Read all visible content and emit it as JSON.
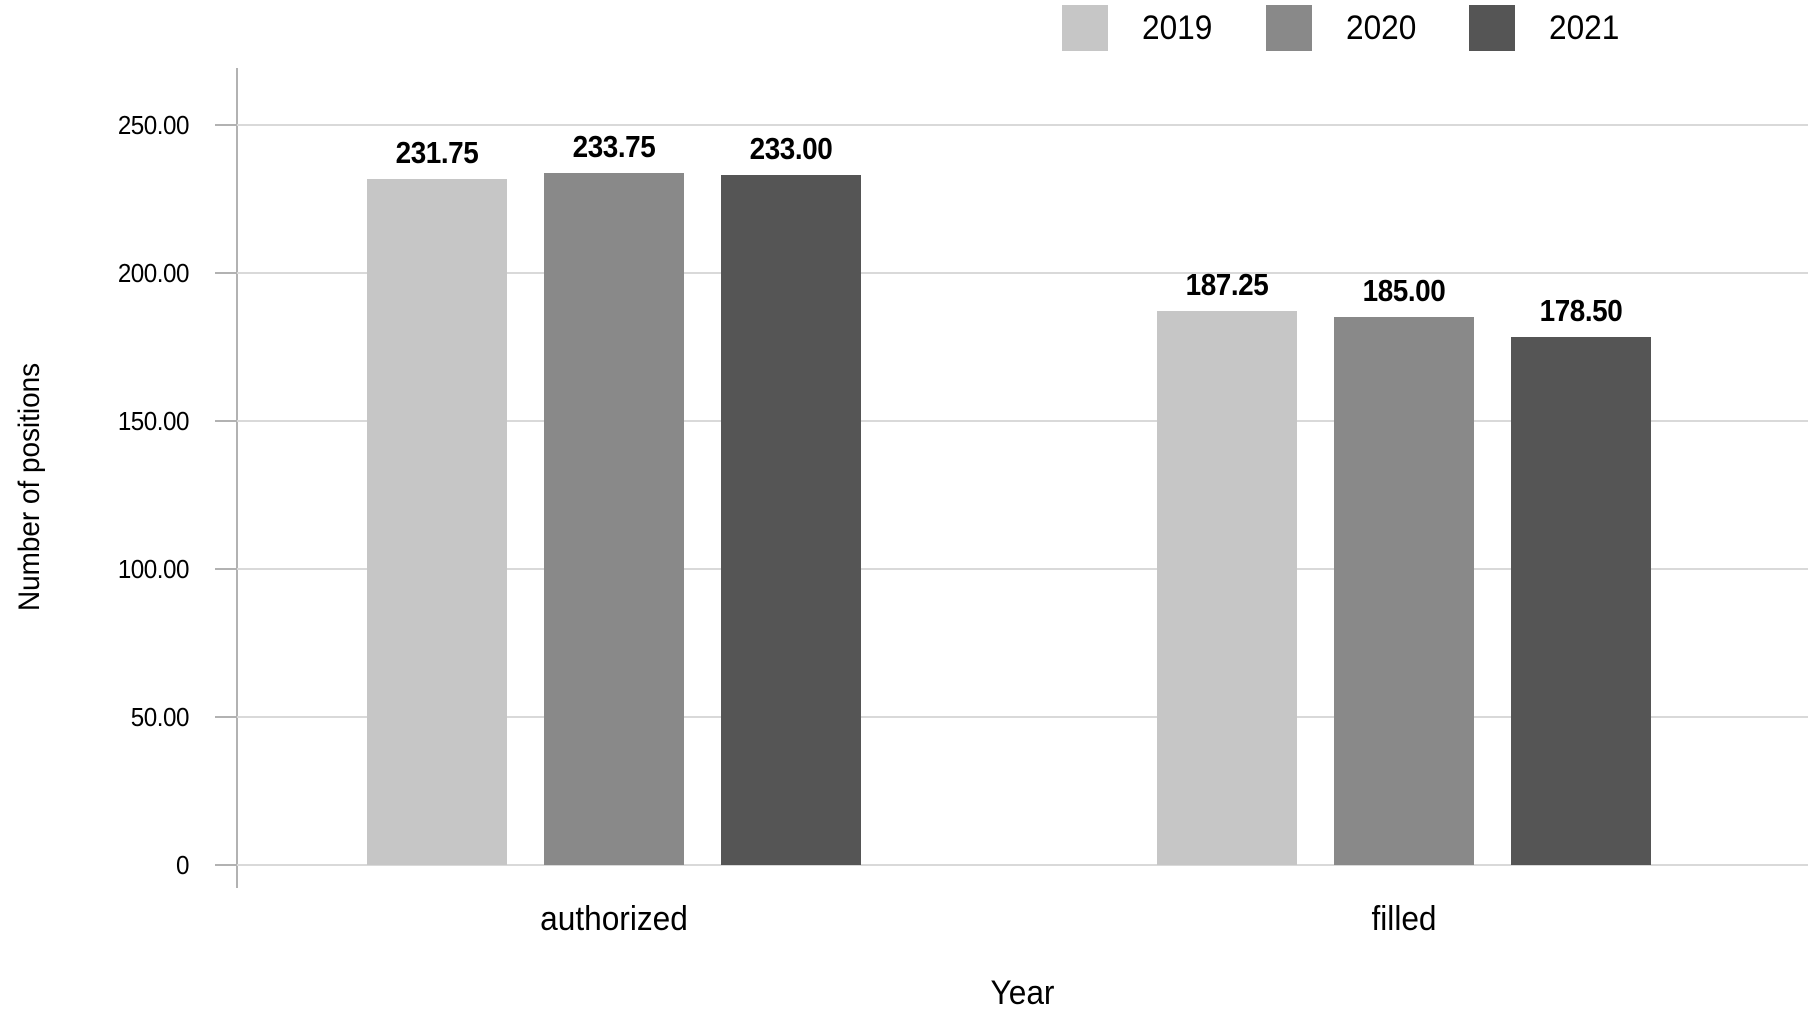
{
  "chart_data": {
    "type": "bar",
    "categories": [
      "authorized",
      "filled"
    ],
    "series": [
      {
        "name": "2019",
        "color": "#c6c6c6",
        "values": [
          231.75,
          187.25
        ]
      },
      {
        "name": "2020",
        "color": "#898989",
        "values": [
          233.75,
          185.0
        ]
      },
      {
        "name": "2021",
        "color": "#555555",
        "values": [
          233.0,
          178.5
        ]
      }
    ],
    "value_labels": [
      [
        "231.75",
        "187.25"
      ],
      [
        "233.75",
        "185.00"
      ],
      [
        "233.00",
        "178.50"
      ]
    ],
    "xlabel": "Year",
    "ylabel": "Number of positions",
    "ylim": [
      0,
      250
    ],
    "y_ticks": [
      {
        "value": 250,
        "label": "250.00"
      },
      {
        "value": 200,
        "label": "200.00"
      },
      {
        "value": 150,
        "label": "150.00"
      },
      {
        "value": 100,
        "label": "100.00"
      },
      {
        "value": 50,
        "label": "50.00"
      },
      {
        "value": 0,
        "label": "0"
      }
    ],
    "grid": true,
    "legend_position": "top-right",
    "colors": {
      "gridline": "#d9d9d9",
      "axis": "#b2b2b2",
      "text": "#000000",
      "background": "#ffffff"
    }
  }
}
